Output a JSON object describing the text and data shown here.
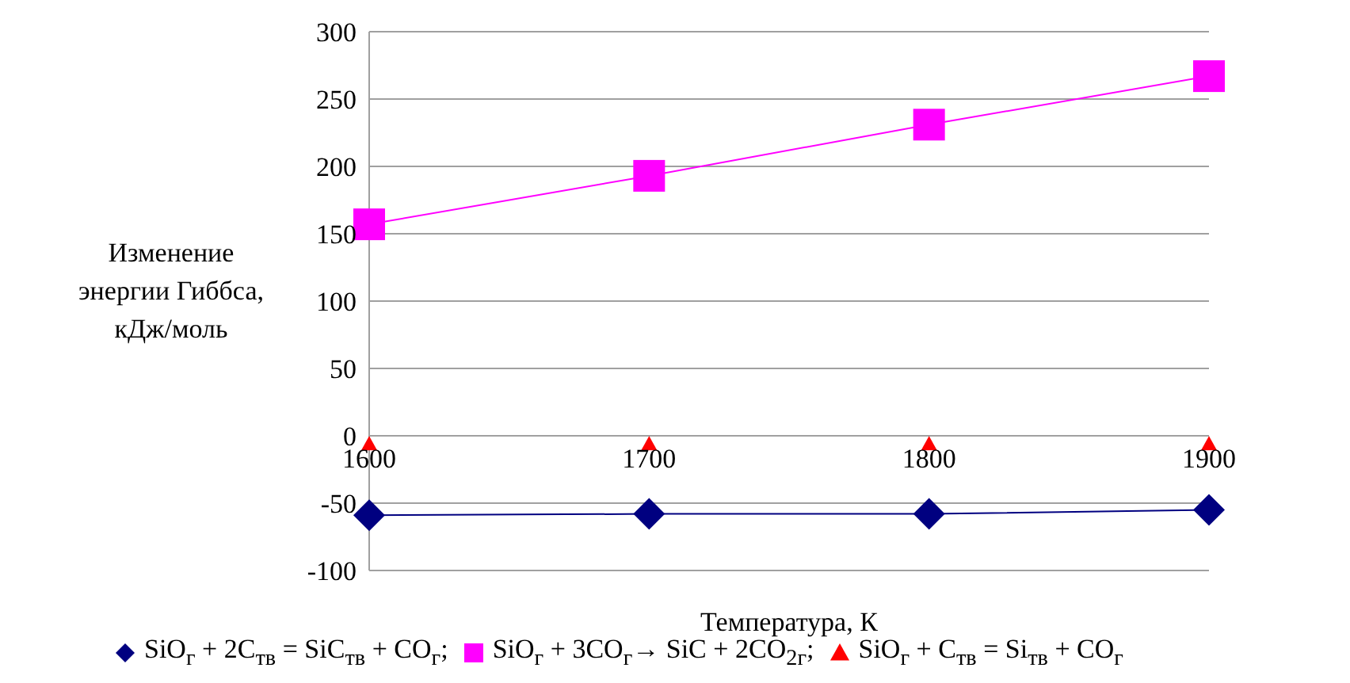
{
  "chart_data": {
    "type": "line",
    "xlabel": "Температура, К",
    "ylabel": "Изменение энергии  Гиббса, кДж/моль",
    "categories": [
      "1600",
      "1700",
      "1800",
      "1900"
    ],
    "series": [
      {
        "name": "SiO$_{г}$ + 2C$_{тв}$ = SiC$_{тв}$ + CO$_{г}$;",
        "marker": "diamond",
        "color": "#000080",
        "values": [
          -59,
          -58,
          -58,
          -55
        ]
      },
      {
        "name": "SiO$_{г}$ + 3CO$_{г}$→  SiC + 2CO$_{2г}$;",
        "marker": "square",
        "color": "#ff00ff",
        "values": [
          157,
          193,
          231,
          267
        ]
      },
      {
        "name": "SiO$_{г}$ + C$_{тв}$ = Si$_{тв}$ + CO$_{г}$",
        "type": "scatter",
        "marker": "triangle",
        "color": "#ff0000",
        "values": [
          -6,
          -6,
          -6,
          -6
        ]
      }
    ],
    "ylim": [
      -100,
      300
    ],
    "yticks": [
      -100,
      -50,
      0,
      50,
      100,
      150,
      200,
      250,
      300
    ],
    "grid": "y",
    "legend": "bottom"
  }
}
